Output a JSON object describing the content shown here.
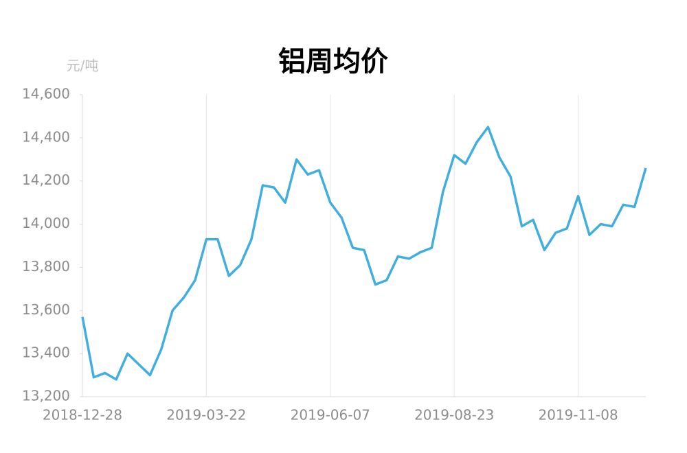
{
  "chart_data": {
    "type": "line",
    "title": "铝周均价",
    "y_axis_label": "元/吨",
    "categories": [
      "2018-12-28",
      null,
      null,
      null,
      null,
      null,
      null,
      null,
      null,
      null,
      null,
      "2019-03-22",
      null,
      null,
      null,
      null,
      null,
      null,
      null,
      null,
      null,
      null,
      "2019-06-07",
      null,
      null,
      null,
      null,
      null,
      null,
      null,
      null,
      null,
      null,
      "2019-08-23",
      null,
      null,
      null,
      null,
      null,
      null,
      null,
      null,
      null,
      null,
      "2019-11-08",
      null,
      null,
      null,
      null,
      null,
      null
    ],
    "series": [
      {
        "name": "铝周均价",
        "color": "#41aee0",
        "values": [
          13570,
          13290,
          13310,
          13280,
          13400,
          13350,
          13300,
          13420,
          13600,
          13660,
          13740,
          13930,
          13930,
          13760,
          13810,
          13930,
          14180,
          14170,
          14100,
          14300,
          14230,
          14250,
          14100,
          14030,
          13890,
          13880,
          13720,
          13740,
          13850,
          13840,
          13870,
          13890,
          14150,
          14320,
          14280,
          14380,
          14450,
          14310,
          14220,
          13990,
          14020,
          13880,
          13960,
          13980,
          14130,
          13950,
          14000,
          13990,
          14090,
          14080,
          14260
        ]
      }
    ],
    "ylim": [
      13200,
      14600
    ],
    "yticks": [
      {
        "value": 13200,
        "label": "13,200"
      },
      {
        "value": 13400,
        "label": "13,400"
      },
      {
        "value": 13600,
        "label": "13,600"
      },
      {
        "value": 13800,
        "label": "13,800"
      },
      {
        "value": 14000,
        "label": "14,000"
      },
      {
        "value": 14200,
        "label": "14,200"
      },
      {
        "value": 14400,
        "label": "14,400"
      },
      {
        "value": 14600,
        "label": "14,600"
      }
    ],
    "grid": "x"
  }
}
